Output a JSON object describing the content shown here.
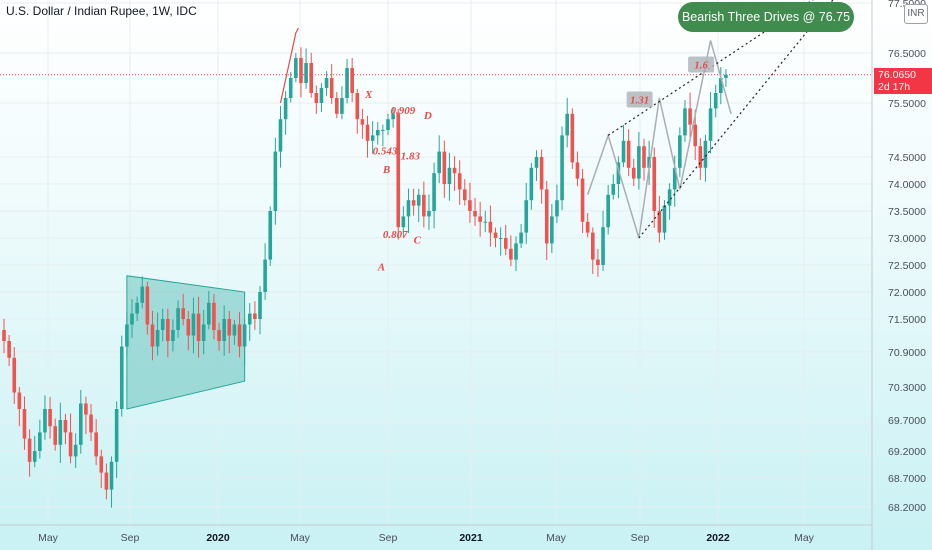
{
  "header": {
    "title": "U.S. Dollar / Indian Rupee, 1W, IDC",
    "currency_badge": "INR"
  },
  "callout": {
    "text": "Bearish Three Drives @ 76.75"
  },
  "price_label": {
    "value": "76.0650",
    "countdown": "2d 17h",
    "color": "#f23645"
  },
  "colors": {
    "up": "#26a69a",
    "down": "#ef5350",
    "pattern_line": "#a8aeb3",
    "box": "#26a69a",
    "label": "#e84a4a"
  },
  "chart_data": {
    "type": "candlestick",
    "title": "U.S. Dollar / Indian Rupee, 1W, IDC",
    "ylim": [
      68.0,
      77.7
    ],
    "y_ticks": [
      "77.5000",
      "76.5000",
      "75.5000",
      "74.5000",
      "74.0000",
      "73.5000",
      "73.0000",
      "72.5000",
      "72.0000",
      "71.5000",
      "70.9000",
      "70.3000",
      "69.7000",
      "69.2000",
      "68.7000",
      "68.2000"
    ],
    "x_ticks": [
      {
        "label": "May",
        "bold": false
      },
      {
        "label": "Sep",
        "bold": false
      },
      {
        "label": "2020",
        "bold": true
      },
      {
        "label": "May",
        "bold": false
      },
      {
        "label": "Sep",
        "bold": false
      },
      {
        "label": "2021",
        "bold": true
      },
      {
        "label": "May",
        "bold": false
      },
      {
        "label": "Sep",
        "bold": false
      },
      {
        "label": "2022",
        "bold": true
      },
      {
        "label": "May",
        "bold": false
      }
    ],
    "last_price": 76.065,
    "close_series": [
      71.1,
      70.8,
      70.2,
      69.9,
      69.4,
      69.0,
      69.2,
      69.5,
      69.9,
      69.6,
      69.3,
      69.7,
      69.5,
      69.1,
      69.3,
      70.0,
      69.8,
      69.5,
      69.1,
      68.8,
      68.5,
      69.0,
      69.9,
      71.0,
      71.4,
      71.6,
      71.8,
      72.1,
      71.4,
      71.0,
      71.3,
      71.5,
      71.1,
      71.3,
      71.7,
      71.5,
      71.2,
      71.6,
      71.1,
      71.4,
      71.8,
      71.3,
      71.1,
      71.5,
      71.2,
      71.4,
      71.0,
      71.4,
      71.6,
      71.5,
      72.0,
      72.6,
      73.5,
      74.6,
      75.2,
      75.6,
      76.0,
      76.4,
      75.9,
      76.3,
      75.7,
      75.5,
      75.8,
      76.0,
      75.6,
      75.3,
      75.6,
      76.2,
      75.7,
      75.2,
      75.1,
      74.8,
      74.9,
      75.0,
      75.0,
      75.2,
      75.3,
      73.2,
      73.4,
      73.7,
      73.6,
      73.8,
      73.4,
      73.5,
      74.2,
      74.6,
      74.0,
      74.3,
      74.2,
      73.9,
      73.7,
      73.5,
      73.4,
      73.3,
      73.3,
      73.1,
      73.0,
      73.0,
      72.8,
      72.6,
      72.9,
      73.1,
      73.7,
      74.3,
      74.5,
      73.9,
      72.9,
      73.4,
      73.7,
      74.9,
      75.3,
      74.4,
      74.1,
      73.3,
      73.1,
      72.6,
      72.5,
      73.2,
      73.8,
      74.0,
      74.4,
      74.8,
      74.3,
      74.1,
      74.7,
      74.3,
      74.5,
      73.5,
      73.1,
      73.6,
      73.9,
      74.3,
      74.9,
      75.4,
      75.1,
      74.7,
      74.3,
      74.8,
      75.4,
      75.7,
      76.0,
      76.065
    ],
    "annotations": {
      "xabcd": [
        {
          "label": "X"
        },
        {
          "label": "A"
        },
        {
          "label": "B"
        },
        {
          "label": "C"
        },
        {
          "label": "D"
        },
        {
          "label": "0.909"
        },
        {
          "label": "0.543"
        },
        {
          "label": "1.83"
        },
        {
          "label": "0.807"
        }
      ],
      "three_drives_ratios": [
        "1.31",
        "1.6"
      ],
      "target": 76.75
    }
  }
}
